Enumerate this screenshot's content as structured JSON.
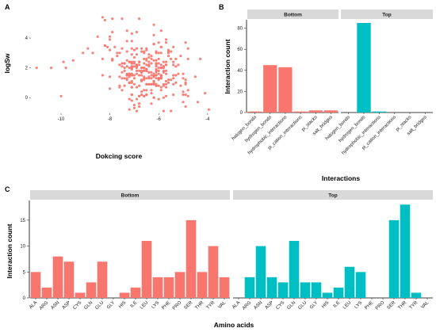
{
  "colors": {
    "bottom": "#f8766d",
    "top": "#00bfc4",
    "strip": "#d9d9d9",
    "axis": "#000000"
  },
  "chart_data": [
    {
      "panel": "A",
      "type": "scatter",
      "xlabel": "Dokcing score",
      "ylabel": "logSw",
      "xlim": [
        -11.2,
        -3.8
      ],
      "ylim": [
        -1.0,
        5.6
      ],
      "xticks": [
        "-10",
        "-8",
        "-6",
        "-4"
      ],
      "xtick_values": [
        -10,
        -8,
        -6,
        -4
      ],
      "yticks": [
        "0",
        "2",
        "4"
      ],
      "ytick_values": [
        0,
        2,
        4
      ],
      "grid": false,
      "color": "#f8766d",
      "points_note": "approx. 300 compounds; cloud centered near x=-6.5, y=1.7",
      "points": [
        [
          -8.3,
          5.4
        ],
        [
          -7.9,
          5.3
        ],
        [
          -7.5,
          5.3
        ],
        [
          -7.3,
          4.5
        ],
        [
          -7.1,
          4.3
        ],
        [
          -8.5,
          4.1
        ],
        [
          -6.2,
          4.2
        ],
        [
          -5.9,
          4.5
        ],
        [
          -10.4,
          2.0
        ],
        [
          -11.0,
          2.0
        ],
        [
          -9.8,
          2.0
        ],
        [
          -9.9,
          2.4
        ],
        [
          -9.5,
          2.5
        ],
        [
          -9.1,
          3.0
        ],
        [
          -8.9,
          3.3
        ],
        [
          -8.7,
          3.0
        ],
        [
          -8.2,
          3.5
        ],
        [
          -8.0,
          3.2
        ],
        [
          -7.8,
          3.4
        ],
        [
          -7.6,
          3.0
        ],
        [
          -4.1,
          0.3
        ],
        [
          -3.95,
          -0.8
        ],
        [
          -5.0,
          -0.3
        ],
        [
          -4.8,
          0.1
        ],
        [
          -6.8,
          -0.6
        ],
        [
          -7.2,
          -0.8
        ],
        [
          -5.5,
          -0.9
        ]
      ],
      "sample_point": [
        -6.4,
        1.8
      ]
    },
    {
      "panel": "B",
      "type": "bar",
      "xlabel": "Interactions",
      "ylabel": "Interaction count",
      "facets": [
        "Bottom",
        "Top"
      ],
      "categories": [
        "halogen_bonds",
        "hydrogen_bonds",
        "hydrophobic_interactions",
        "pi_cation_interactions",
        "pi_stacks",
        "salt_bridges"
      ],
      "series": [
        {
          "name": "Bottom",
          "values": [
            1,
            45,
            43,
            1,
            2,
            2
          ]
        },
        {
          "name": "Top",
          "values": [
            0,
            85,
            1,
            0,
            0,
            0
          ]
        }
      ],
      "ylim": [
        0,
        88
      ],
      "yticks": [
        "0",
        "20",
        "40",
        "60",
        "80"
      ],
      "ytick_values": [
        0,
        20,
        40,
        60,
        80
      ]
    },
    {
      "panel": "C",
      "type": "bar",
      "xlabel": "Amino acids",
      "ylabel": "Interaction count",
      "facets": [
        "Bottom",
        "Top"
      ],
      "categories": [
        "ALA",
        "ARG",
        "ASN",
        "ASP",
        "CYS",
        "GLN",
        "GLU",
        "GLY",
        "HIS",
        "ILE",
        "LEU",
        "LYS",
        "PHE",
        "PRO",
        "SER",
        "THR",
        "TYR",
        "VAL"
      ],
      "series": [
        {
          "name": "Bottom",
          "values": [
            5,
            2,
            8,
            7,
            1,
            3,
            7,
            0,
            1,
            2,
            11,
            4,
            4,
            5,
            15,
            5,
            10,
            4
          ]
        },
        {
          "name": "Top",
          "values": [
            0,
            4,
            10,
            4,
            3,
            11,
            3,
            3,
            1,
            2,
            6,
            5,
            0,
            0,
            15,
            18,
            1,
            0
          ]
        }
      ],
      "ylim": [
        0,
        18.8
      ],
      "yticks": [
        "0",
        "5",
        "10",
        "15"
      ],
      "ytick_values": [
        0,
        5,
        10,
        15
      ]
    }
  ]
}
